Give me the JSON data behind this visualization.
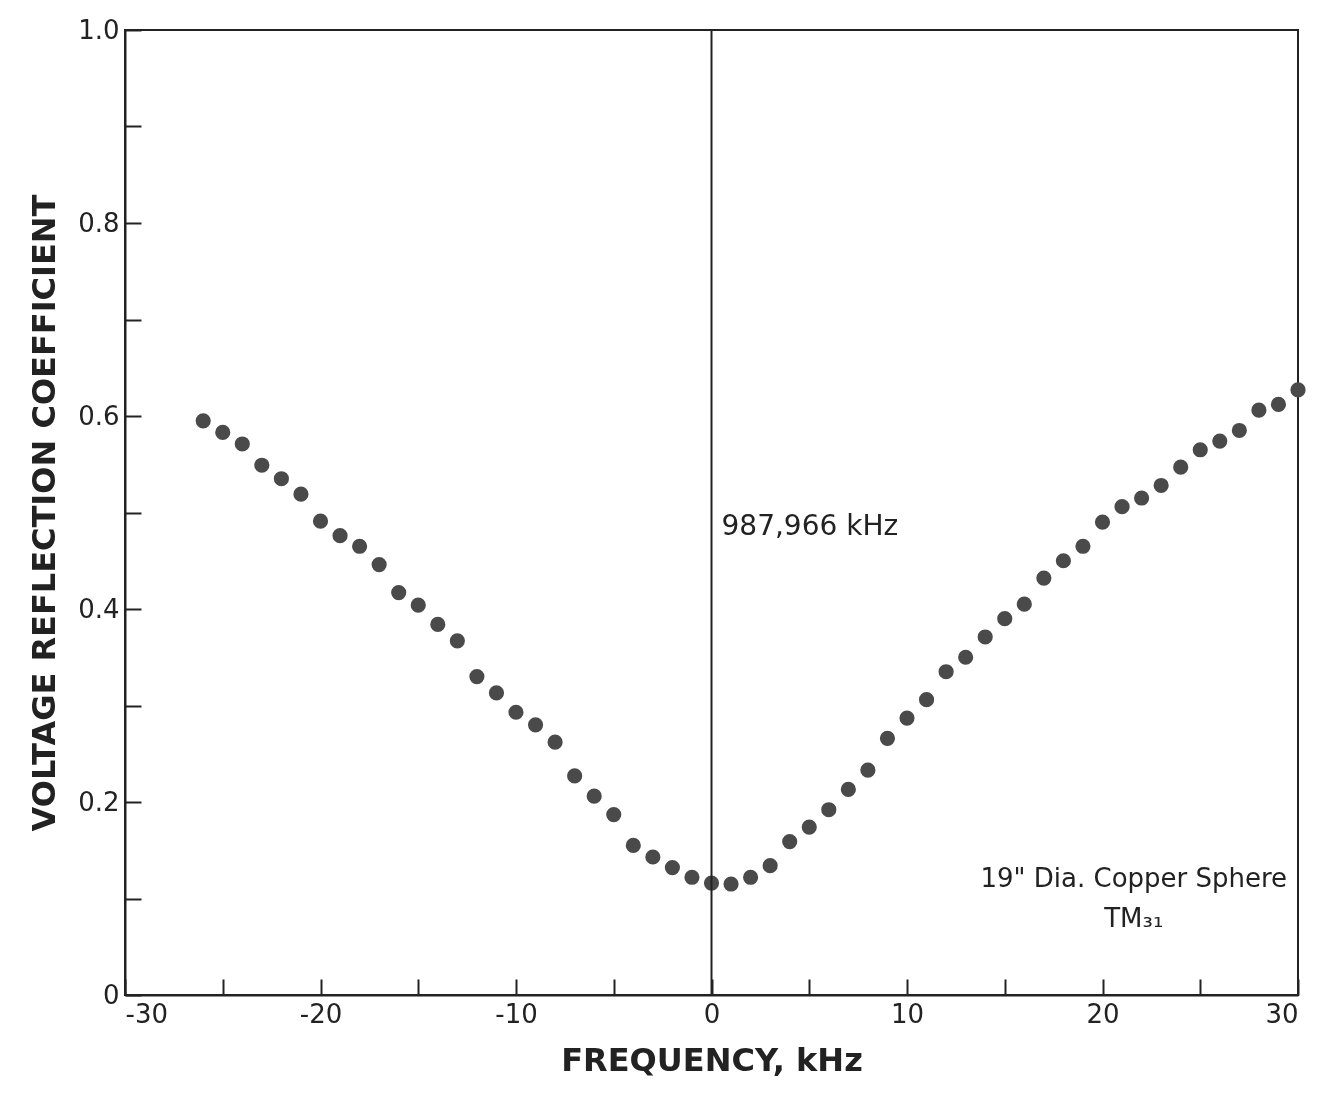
{
  "chart_data": {
    "type": "scatter",
    "xlabel": "FREQUENCY, kHz",
    "ylabel": "VOLTAGE REFLECTION COEFFICIENT",
    "x": [
      -26,
      -25,
      -24,
      -23,
      -22,
      -21,
      -20,
      -19,
      -18,
      -17,
      -16,
      -15,
      -14,
      -13,
      -12,
      -11,
      -10,
      -9,
      -8,
      -7,
      -6,
      -5,
      -4,
      -3,
      -2,
      -1,
      0,
      1,
      2,
      3,
      4,
      5,
      6,
      7,
      8,
      9,
      10,
      11,
      12,
      13,
      14,
      15,
      16,
      17,
      18,
      19,
      20,
      21,
      22,
      23,
      24,
      25,
      26,
      27,
      28,
      29,
      30
    ],
    "series": [
      {
        "color": "#4a4a4a",
        "values": [
          0.595,
          0.583,
          0.571,
          0.549,
          0.535,
          0.519,
          0.491,
          0.476,
          0.465,
          0.446,
          0.417,
          0.404,
          0.384,
          0.367,
          0.33,
          0.313,
          0.293,
          0.28,
          0.262,
          0.227,
          0.206,
          0.187,
          0.155,
          0.143,
          0.132,
          0.122,
          0.116,
          0.115,
          0.122,
          0.134,
          0.159,
          0.174,
          0.192,
          0.213,
          0.233,
          0.266,
          0.287,
          0.306,
          0.335,
          0.35,
          0.371,
          0.39,
          0.405,
          0.432,
          0.45,
          0.465,
          0.49,
          0.506,
          0.515,
          0.528,
          0.547,
          0.565,
          0.574,
          0.585,
          0.606,
          0.612,
          0.627
        ]
      }
    ],
    "marker": "circle",
    "xlim": [
      -30,
      30
    ],
    "xticks": [
      -30,
      {
        "value": -25,
        "label": null
      },
      -20,
      {
        "value": -15,
        "label": null
      },
      -10,
      {
        "value": -5,
        "label": null
      },
      0,
      {
        "value": 5,
        "label": null
      },
      10,
      {
        "value": 15,
        "label": null
      },
      20,
      {
        "value": 25,
        "label": null
      },
      30
    ],
    "ylim": [
      0,
      1
    ],
    "yticks": [
      0,
      {
        "value": 0.1,
        "label": null
      },
      0.2,
      {
        "value": 0.3,
        "label": null
      },
      0.4,
      {
        "value": 0.5,
        "label": null
      },
      0.6,
      {
        "value": 0.7,
        "label": null
      },
      0.8,
      {
        "value": 0.9,
        "label": null
      },
      {
        "value": 1,
        "label": "1.0"
      }
    ],
    "ref_lines": [
      {
        "axis": "x",
        "value": 0,
        "label": "987,966 kHz",
        "color": "#222222"
      }
    ],
    "annotations": [
      "19\" Dia. Copper Sphere",
      "TM₃₁"
    ],
    "grid": false
  }
}
